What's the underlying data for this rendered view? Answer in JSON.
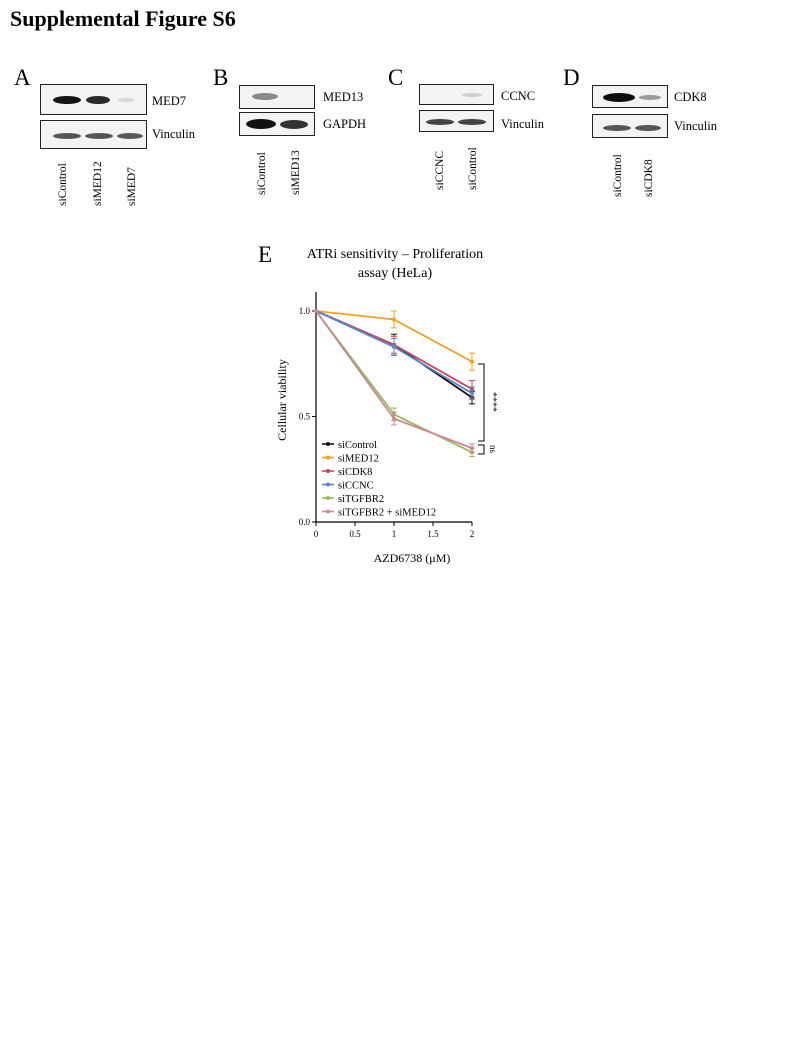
{
  "figure_title": "Supplemental Figure S6",
  "panels": {
    "A": {
      "letter": "A",
      "bands": [
        "MED7",
        "Vinculin"
      ],
      "lanes": [
        "siControl",
        "siMED12",
        "siMED7"
      ]
    },
    "B": {
      "letter": "B",
      "bands": [
        "MED13",
        "GAPDH"
      ],
      "lanes": [
        "siControl",
        "siMED13"
      ]
    },
    "C": {
      "letter": "C",
      "bands": [
        "CCNC",
        "Vinculin"
      ],
      "lanes": [
        "siCCNC",
        "siControl"
      ]
    },
    "D": {
      "letter": "D",
      "bands": [
        "CDK8",
        "Vinculin"
      ],
      "lanes": [
        "siControl",
        "siCDK8"
      ]
    },
    "E": {
      "letter": "E"
    }
  },
  "chart_data": {
    "type": "line",
    "title_line1": "ATRi sensitivity – Proliferation",
    "title_line2": "assay (HeLa)",
    "xlabel": "AZD6738 (μM)",
    "ylabel": "Cellular viability",
    "x": [
      0,
      1,
      2
    ],
    "xticks": [
      "0",
      "0.5",
      "1",
      "1.5",
      "2"
    ],
    "xtick_values": [
      0,
      0.5,
      1,
      1.5,
      2
    ],
    "yticks": [
      "0.0",
      "0.5",
      "1.0"
    ],
    "ytick_values": [
      0,
      0.5,
      1.0
    ],
    "xlim": [
      0,
      2
    ],
    "ylim": [
      0,
      1.0
    ],
    "series": [
      {
        "name": "siControl",
        "color": "#111111",
        "values": [
          1.0,
          0.84,
          0.59
        ],
        "err": [
          0,
          0.05,
          0.03
        ]
      },
      {
        "name": "siMED12",
        "color": "#f0a020",
        "values": [
          1.0,
          0.96,
          0.76
        ],
        "err": [
          0,
          0.04,
          0.04
        ]
      },
      {
        "name": "siCDK8",
        "color": "#d0405a",
        "values": [
          1.0,
          0.84,
          0.63
        ],
        "err": [
          0,
          0.04,
          0.04
        ]
      },
      {
        "name": "siCCNC",
        "color": "#5588cc",
        "values": [
          1.0,
          0.83,
          0.61
        ],
        "err": [
          0,
          0.04,
          0.03
        ]
      },
      {
        "name": "siTGFBR2",
        "color": "#99bb55",
        "values": [
          1.0,
          0.51,
          0.33
        ],
        "err": [
          0,
          0.03,
          0.02
        ]
      },
      {
        "name": "siTGFBR2 + siMED12",
        "color": "#cc8899",
        "values": [
          1.0,
          0.49,
          0.35
        ],
        "err": [
          0,
          0.03,
          0.02
        ]
      }
    ],
    "annotations": [
      {
        "text": "****"
      },
      {
        "text": "ns"
      }
    ],
    "legend_position": "bottom-left"
  }
}
